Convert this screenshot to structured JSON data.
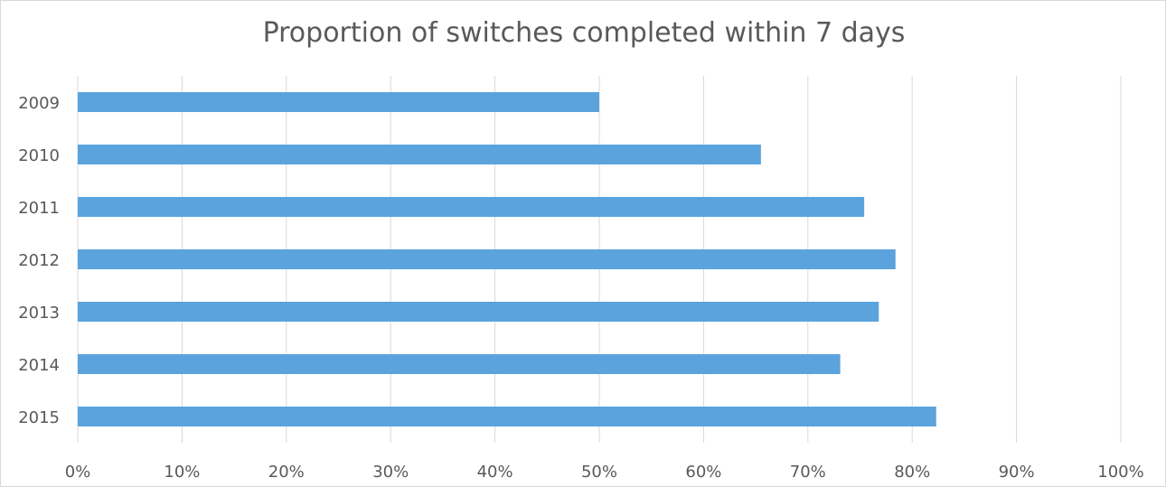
{
  "chart_data": {
    "type": "bar",
    "orientation": "horizontal",
    "title": "Proportion of switches completed within 7 days",
    "categories": [
      "2009",
      "2010",
      "2011",
      "2012",
      "2013",
      "2014",
      "2015"
    ],
    "values": [
      0.5,
      0.655,
      0.754,
      0.784,
      0.768,
      0.731,
      0.823
    ],
    "xlim": [
      0,
      1
    ],
    "x_ticks": [
      "0%",
      "10%",
      "20%",
      "30%",
      "40%",
      "50%",
      "60%",
      "70%",
      "80%",
      "90%",
      "100%"
    ],
    "xlabel": "",
    "ylabel": "",
    "grid": "vertical",
    "legend": "none",
    "bar_color": "#5ba3dd",
    "grid_color": "#d9d9d9"
  }
}
